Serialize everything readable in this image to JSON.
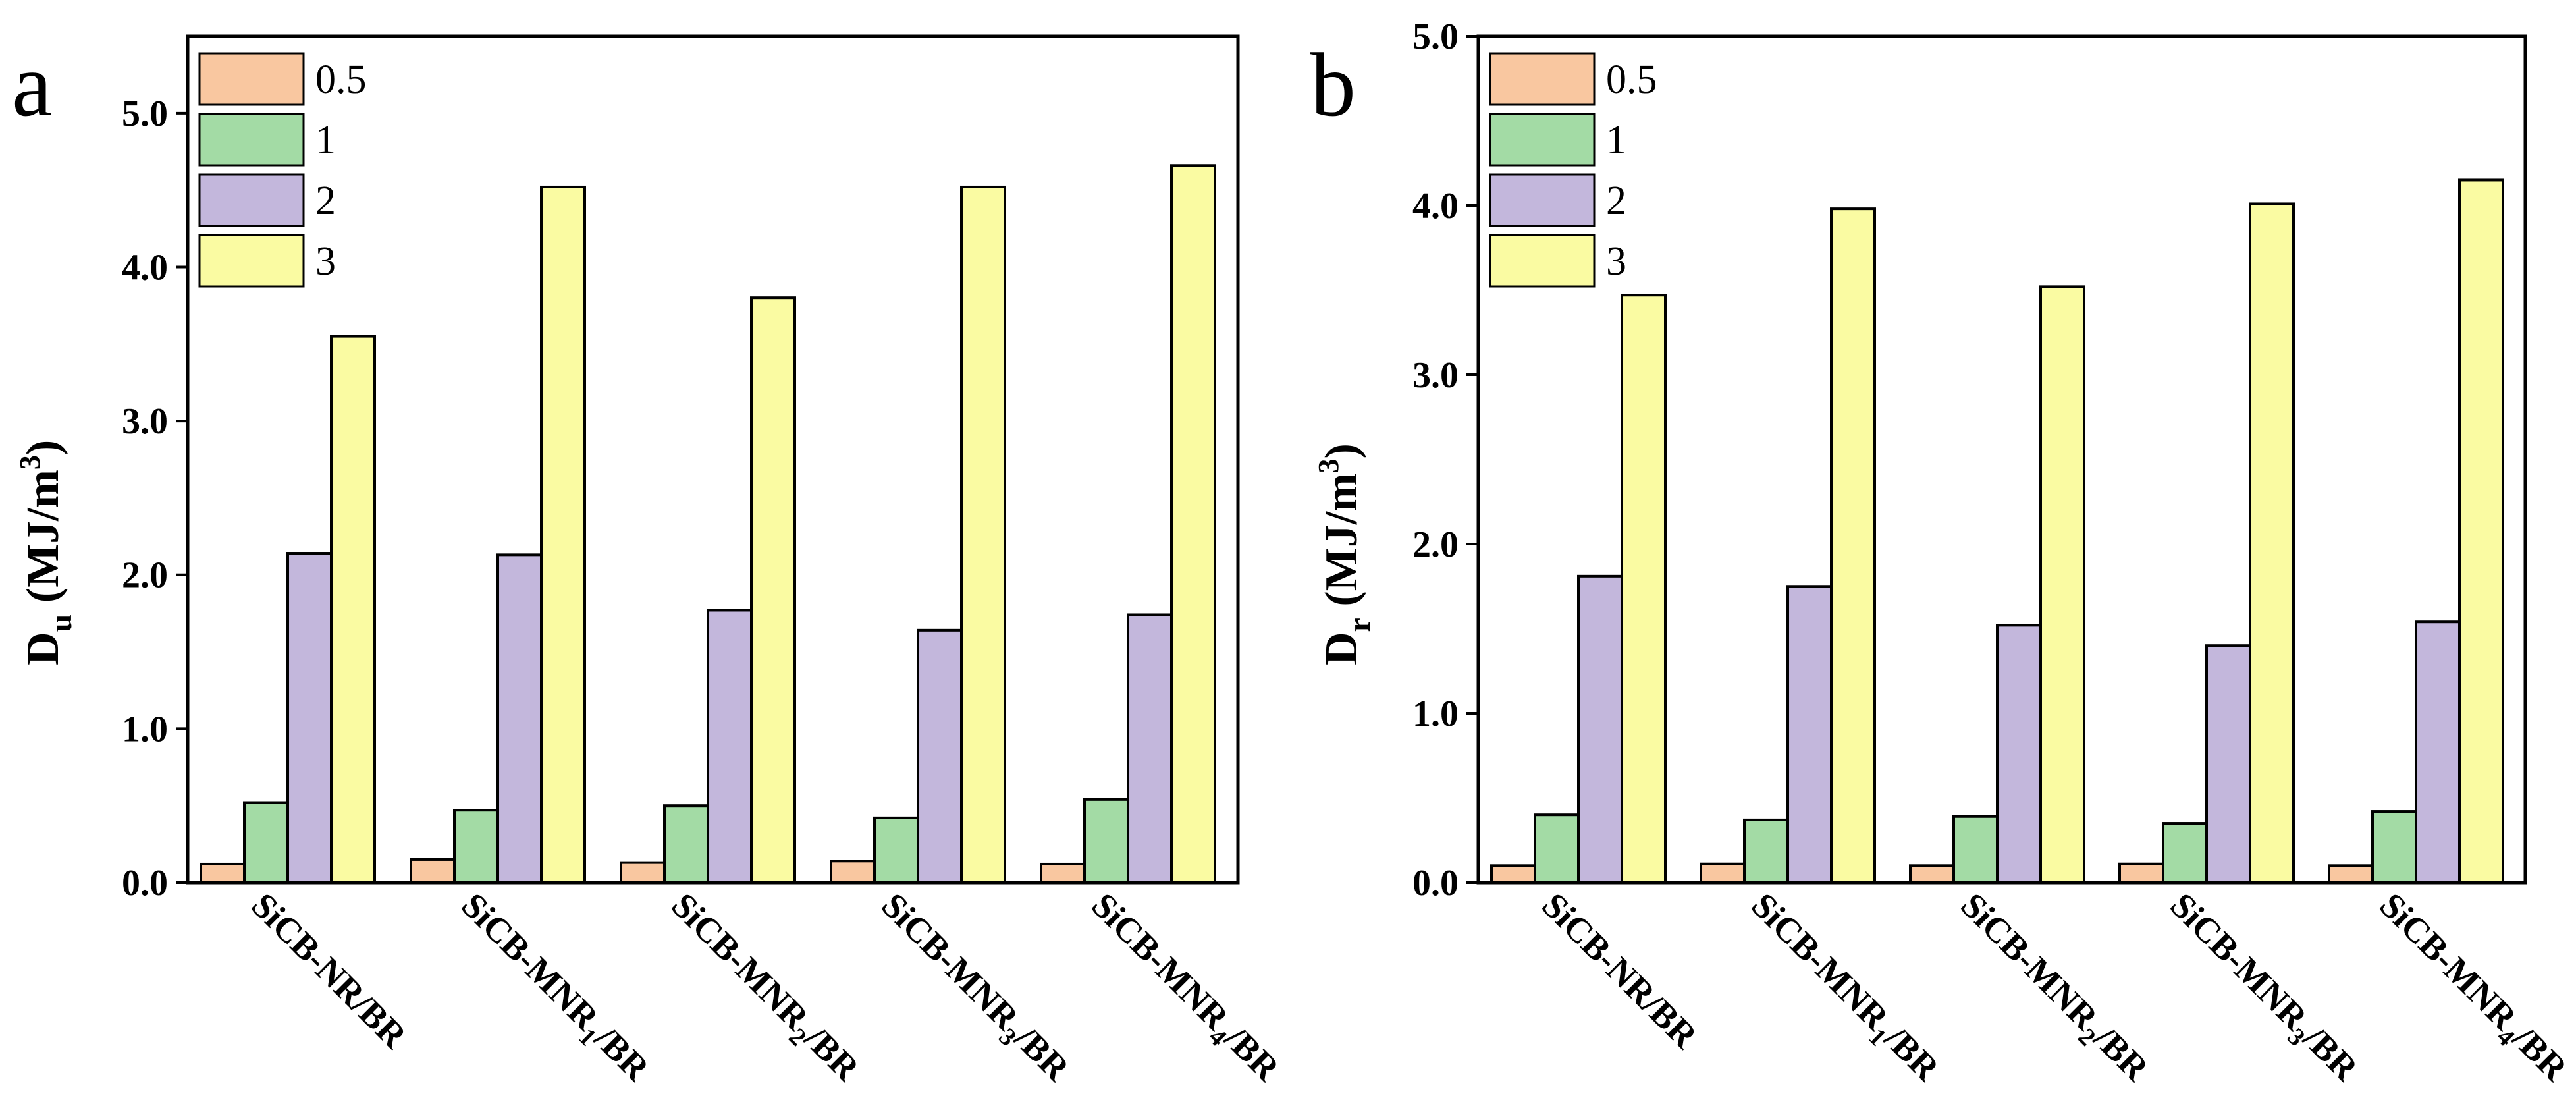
{
  "chart_data": [
    {
      "type": "bar",
      "panel": "a",
      "ylabel_main": "D",
      "ylabel_sub": "u",
      "ylabel_unit": " (MJ/m",
      "ylabel_sup": "3",
      "ylabel_close": ")",
      "ylim": [
        0,
        5.5
      ],
      "yticks": [
        0,
        1,
        2,
        3,
        4,
        5
      ],
      "ytick_labels": [
        "0.0",
        "1.0",
        "2.0",
        "3.0",
        "4.0",
        "5.0"
      ],
      "categories": [
        {
          "base": "SiCB-NR/BR",
          "pre": "SiCB-NR/BR",
          "sub": "",
          "post": ""
        },
        {
          "base": "SiCB-MNR1/BR",
          "pre": "SiCB-MNR",
          "sub": "1",
          "post": "/BR"
        },
        {
          "base": "SiCB-MNR2/BR",
          "pre": "SiCB-MNR",
          "sub": "2",
          "post": "/BR"
        },
        {
          "base": "SiCB-MNR3/BR",
          "pre": "SiCB-MNR",
          "sub": "3",
          "post": "/BR"
        },
        {
          "base": "SiCB-MNR4/BR",
          "pre": "SiCB-MNR",
          "sub": "4",
          "post": "/BR"
        }
      ],
      "series": [
        {
          "name": "0.5",
          "color": "#f9c7a0",
          "values": [
            0.12,
            0.15,
            0.13,
            0.14,
            0.12
          ]
        },
        {
          "name": "1",
          "color": "#a3dba5",
          "values": [
            0.52,
            0.47,
            0.5,
            0.42,
            0.54
          ]
        },
        {
          "name": "2",
          "color": "#c3b7dc",
          "values": [
            2.14,
            2.13,
            1.77,
            1.64,
            1.74
          ]
        },
        {
          "name": "3",
          "color": "#fafba2",
          "values": [
            3.55,
            4.52,
            3.8,
            4.52,
            4.66
          ]
        }
      ],
      "legend": "top-left"
    },
    {
      "type": "bar",
      "panel": "b",
      "ylabel_main": "D",
      "ylabel_sub": "r",
      "ylabel_unit": " (MJ/m",
      "ylabel_sup": "3",
      "ylabel_close": ")",
      "ylim": [
        0,
        5.0
      ],
      "yticks": [
        0,
        1,
        2,
        3,
        4,
        5
      ],
      "ytick_labels": [
        "0.0",
        "1.0",
        "2.0",
        "3.0",
        "4.0",
        "5.0"
      ],
      "categories": [
        {
          "base": "SiCB-NR/BR",
          "pre": "SiCB-NR/BR",
          "sub": "",
          "post": ""
        },
        {
          "base": "SiCB-MNR1/BR",
          "pre": "SiCB-MNR",
          "sub": "1",
          "post": "/BR"
        },
        {
          "base": "SiCB-MNR2/BR",
          "pre": "SiCB-MNR",
          "sub": "2",
          "post": "/BR"
        },
        {
          "base": "SiCB-MNR3/BR",
          "pre": "SiCB-MNR",
          "sub": "3",
          "post": "/BR"
        },
        {
          "base": "SiCB-MNR4/BR",
          "pre": "SiCB-MNR",
          "sub": "4",
          "post": "/BR"
        }
      ],
      "series": [
        {
          "name": "0.5",
          "color": "#f9c7a0",
          "values": [
            0.1,
            0.11,
            0.1,
            0.11,
            0.1
          ]
        },
        {
          "name": "1",
          "color": "#a3dba5",
          "values": [
            0.4,
            0.37,
            0.39,
            0.35,
            0.42
          ]
        },
        {
          "name": "2",
          "color": "#c3b7dc",
          "values": [
            1.81,
            1.75,
            1.52,
            1.4,
            1.54
          ]
        },
        {
          "name": "3",
          "color": "#fafba2",
          "values": [
            3.47,
            3.98,
            3.52,
            4.01,
            4.15
          ]
        }
      ],
      "legend": "top-left"
    }
  ]
}
